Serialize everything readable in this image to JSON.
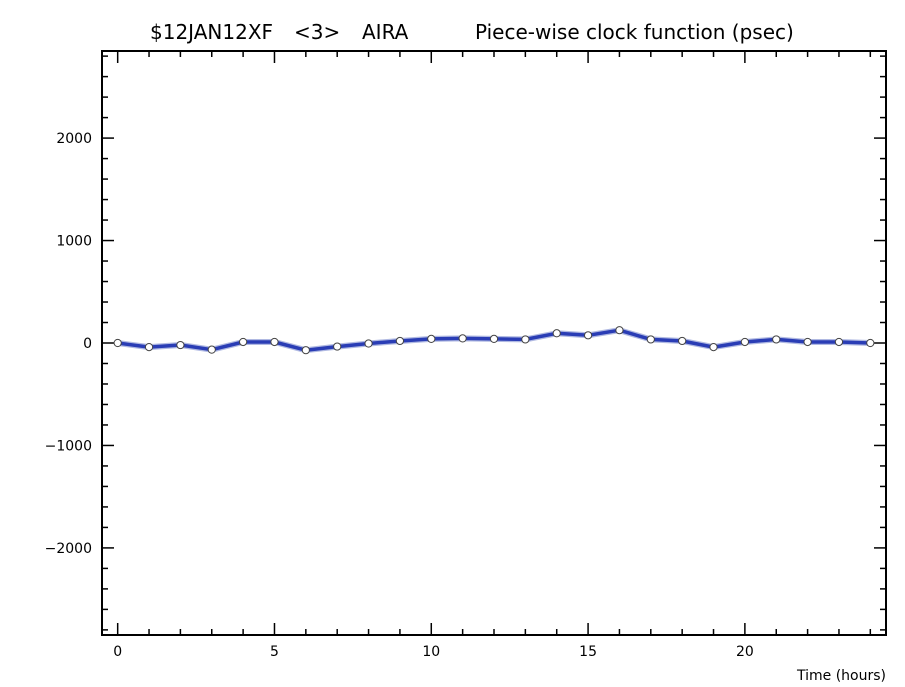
{
  "header": {
    "experiment": "$12JAN12XF",
    "channel": "<3>",
    "station": "AIRA",
    "function_title": "Piece-wise clock function (psec)"
  },
  "chart_data": {
    "type": "line",
    "title": "Piece-wise clock function (psec)",
    "xlabel": "Time (hours)",
    "ylabel": "",
    "xlim": [
      -0.5,
      24.5
    ],
    "ylim": [
      -2850,
      2850
    ],
    "x_ticks": [
      0,
      5,
      10,
      15,
      20
    ],
    "y_ticks": [
      -2000,
      -1000,
      0,
      1000,
      2000
    ],
    "x_tick_labels": [
      "0",
      "5",
      "10",
      "15",
      "20"
    ],
    "y_tick_labels": [
      "−2000",
      "−1000",
      "0",
      "1000",
      "2000"
    ],
    "grid": false,
    "line_color": "#2a3db5",
    "marker_fill": "#ffffff",
    "series": [
      {
        "x": [
          0,
          1,
          2,
          3,
          4,
          5,
          6,
          7,
          8,
          9,
          10,
          11,
          12,
          13,
          14,
          15,
          16,
          17,
          18,
          19,
          20,
          21,
          22,
          23,
          24
        ],
        "y": [
          0,
          -40,
          -20,
          -65,
          10,
          10,
          -70,
          -35,
          -5,
          20,
          40,
          45,
          40,
          35,
          95,
          75,
          125,
          35,
          20,
          -40,
          10,
          35,
          10,
          10,
          0
        ]
      }
    ]
  }
}
